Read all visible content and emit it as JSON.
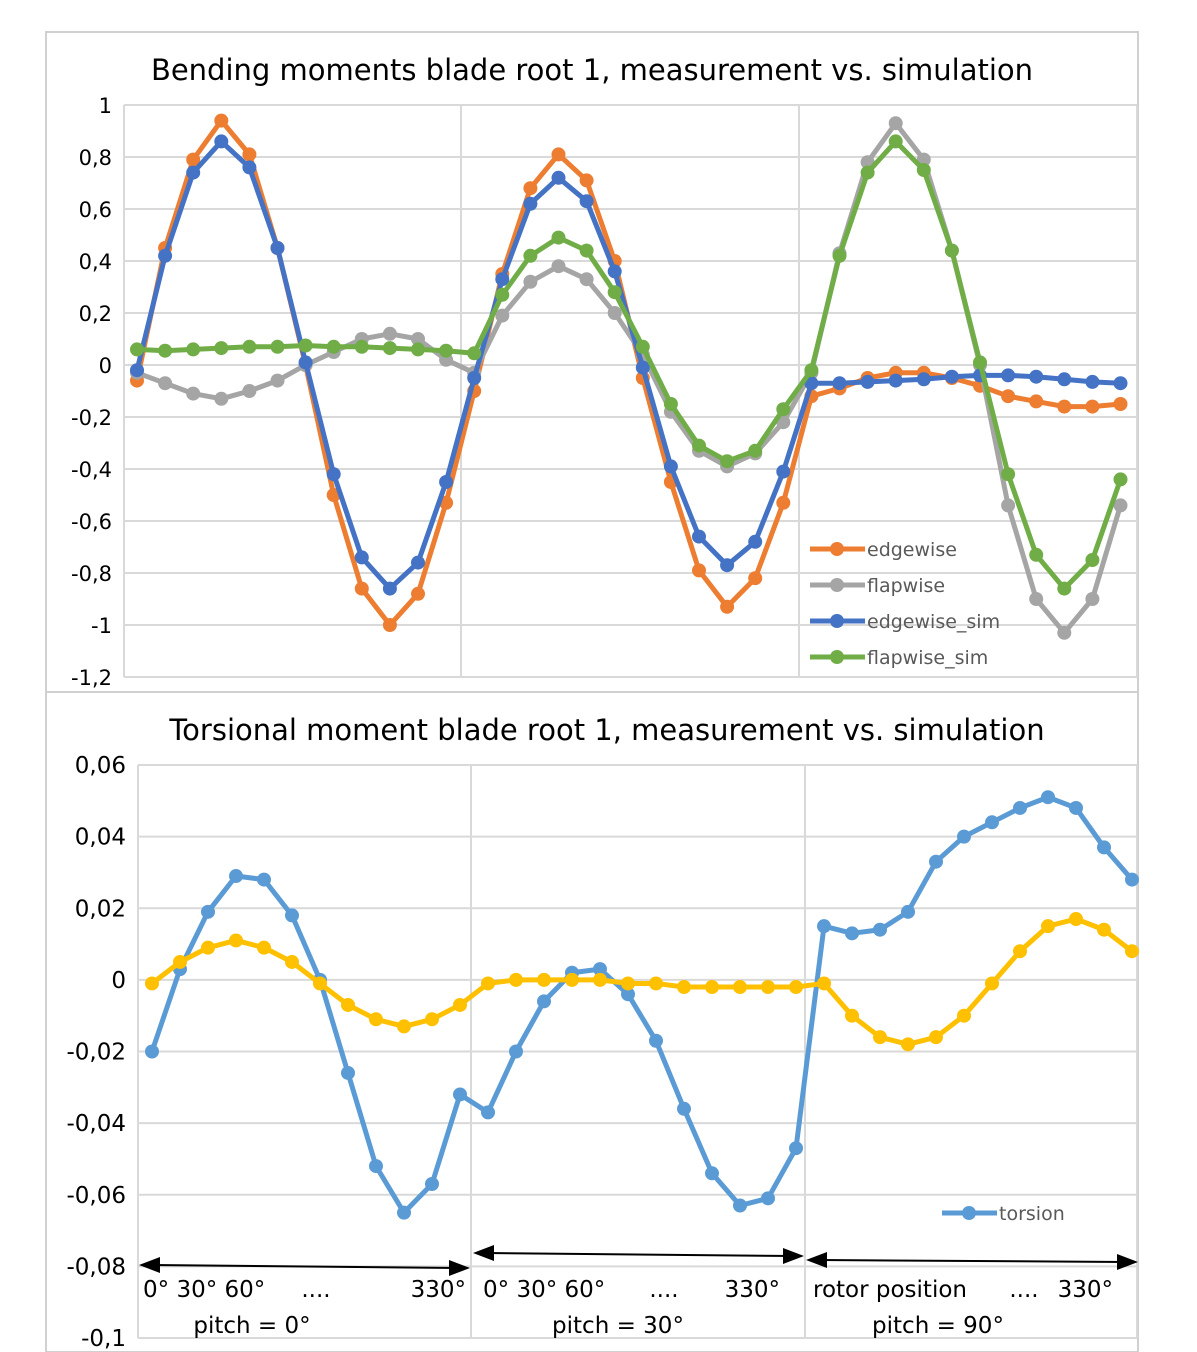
{
  "chart_data": [
    {
      "type": "line",
      "title": "Bending moments blade root 1, measurement vs. simulation",
      "ylim": [
        -1.2,
        1
      ],
      "y_ticks": [
        "1",
        "0,8",
        "0,6",
        "0,4",
        "0,2",
        "0",
        "-0,2",
        "-0,4",
        "-0,6",
        "-0,8",
        "-1",
        "-1,2"
      ],
      "grid": true,
      "legend_position": "bottom-right",
      "colors": {
        "edgewise": "#ED7D31",
        "flapwise": "#A5A5A5",
        "edgewise_sim": "#4472C4",
        "flapwise_sim": "#70AD47"
      },
      "series": [
        {
          "name": "edgewise",
          "values": [
            -0.06,
            0.45,
            0.79,
            0.94,
            0.81,
            0.45,
            0.0,
            -0.5,
            -0.86,
            -1.0,
            -0.88,
            -0.53,
            -0.1,
            0.35,
            0.68,
            0.81,
            0.71,
            0.4,
            -0.05,
            -0.45,
            -0.79,
            -0.93,
            -0.82,
            -0.53,
            -0.12,
            -0.09,
            -0.05,
            -0.03,
            -0.03,
            -0.05,
            -0.08,
            -0.12,
            -0.14,
            -0.16,
            -0.16,
            -0.15
          ]
        },
        {
          "name": "flapwise",
          "values": [
            -0.03,
            -0.07,
            -0.11,
            -0.13,
            -0.1,
            -0.06,
            0.0,
            0.05,
            0.1,
            0.12,
            0.1,
            0.02,
            -0.03,
            0.19,
            0.32,
            0.38,
            0.33,
            0.2,
            0.04,
            -0.18,
            -0.33,
            -0.39,
            -0.34,
            -0.22,
            -0.03,
            0.43,
            0.78,
            0.93,
            0.79,
            0.44,
            0.0,
            -0.54,
            -0.9,
            -1.03,
            -0.9,
            -0.54
          ]
        },
        {
          "name": "edgewise_sim",
          "values": [
            -0.02,
            0.42,
            0.74,
            0.86,
            0.76,
            0.45,
            0.01,
            -0.42,
            -0.74,
            -0.86,
            -0.76,
            -0.45,
            -0.05,
            0.33,
            0.62,
            0.72,
            0.63,
            0.36,
            -0.01,
            -0.39,
            -0.66,
            -0.77,
            -0.68,
            -0.41,
            -0.07,
            -0.07,
            -0.065,
            -0.06,
            -0.055,
            -0.045,
            -0.04,
            -0.04,
            -0.045,
            -0.055,
            -0.065,
            -0.07
          ]
        },
        {
          "name": "flapwise_sim",
          "values": [
            0.06,
            0.055,
            0.06,
            0.065,
            0.07,
            0.07,
            0.075,
            0.07,
            0.07,
            0.065,
            0.06,
            0.055,
            0.045,
            0.27,
            0.42,
            0.49,
            0.44,
            0.28,
            0.07,
            -0.15,
            -0.31,
            -0.37,
            -0.33,
            -0.17,
            -0.02,
            0.42,
            0.74,
            0.86,
            0.75,
            0.44,
            0.01,
            -0.42,
            -0.73,
            -0.86,
            -0.75,
            -0.44
          ]
        }
      ]
    },
    {
      "type": "line",
      "title": "Torsional moment blade root 1, measurement vs. simulation",
      "ylim": [
        -0.1,
        0.06
      ],
      "y_ticks": [
        "0,06",
        "0,04",
        "0,02",
        "0",
        "-0,02",
        "-0,04",
        "-0,06",
        "-0,08",
        "-0,1"
      ],
      "grid": true,
      "legend_position": "bottom-right",
      "colors": {
        "torsion": "#5B9BD5",
        "unlabeled": "#FFC000"
      },
      "series": [
        {
          "name": "torsion",
          "values": [
            -0.02,
            0.003,
            0.019,
            0.029,
            0.028,
            0.018,
            0.0,
            -0.026,
            -0.052,
            -0.065,
            -0.057,
            -0.032,
            -0.037,
            -0.02,
            -0.006,
            0.002,
            0.003,
            -0.004,
            -0.017,
            -0.036,
            -0.054,
            -0.063,
            -0.061,
            -0.047,
            0.015,
            0.013,
            0.014,
            0.019,
            0.033,
            0.04,
            0.044,
            0.048,
            0.051,
            0.048,
            0.037,
            0.028
          ]
        },
        {
          "values": [
            -0.001,
            0.005,
            0.009,
            0.011,
            0.009,
            0.005,
            -0.001,
            -0.007,
            -0.011,
            -0.013,
            -0.011,
            -0.007,
            -0.001,
            0.0,
            0.0,
            0.0,
            0.0,
            -0.001,
            -0.001,
            -0.002,
            -0.002,
            -0.002,
            -0.002,
            -0.002,
            -0.001,
            -0.01,
            -0.016,
            -0.018,
            -0.016,
            -0.01,
            -0.001,
            0.008,
            0.015,
            0.017,
            0.014,
            0.008
          ]
        }
      ],
      "annotations": {
        "row1": [
          "0° 30° 60°",
          "....",
          "330°",
          "0° 30° 60°",
          "....",
          "330°",
          "rotor position",
          "....",
          "330°"
        ],
        "row2": [
          "pitch = 0°",
          "pitch = 30°",
          "pitch = 90°"
        ]
      }
    }
  ]
}
